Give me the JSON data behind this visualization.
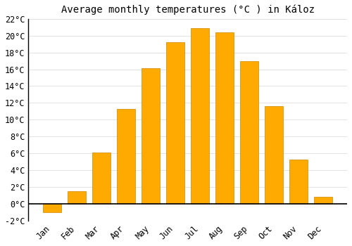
{
  "title": "Average monthly temperatures (°C ) in Káloz",
  "months": [
    "Jan",
    "Feb",
    "Mar",
    "Apr",
    "May",
    "Jun",
    "Jul",
    "Aug",
    "Sep",
    "Oct",
    "Nov",
    "Dec"
  ],
  "values": [
    -1.0,
    1.5,
    6.1,
    11.3,
    16.1,
    19.2,
    20.9,
    20.4,
    17.0,
    11.6,
    5.3,
    0.8
  ],
  "bar_color": "#FFAA00",
  "bar_edge_color": "#CC8800",
  "ylim": [
    -2,
    22
  ],
  "yticks": [
    -2,
    0,
    2,
    4,
    6,
    8,
    10,
    12,
    14,
    16,
    18,
    20,
    22
  ],
  "background_color": "#FFFFFF",
  "grid_color": "#DDDDDD",
  "title_fontsize": 10,
  "tick_fontsize": 8.5,
  "bar_width": 0.75
}
